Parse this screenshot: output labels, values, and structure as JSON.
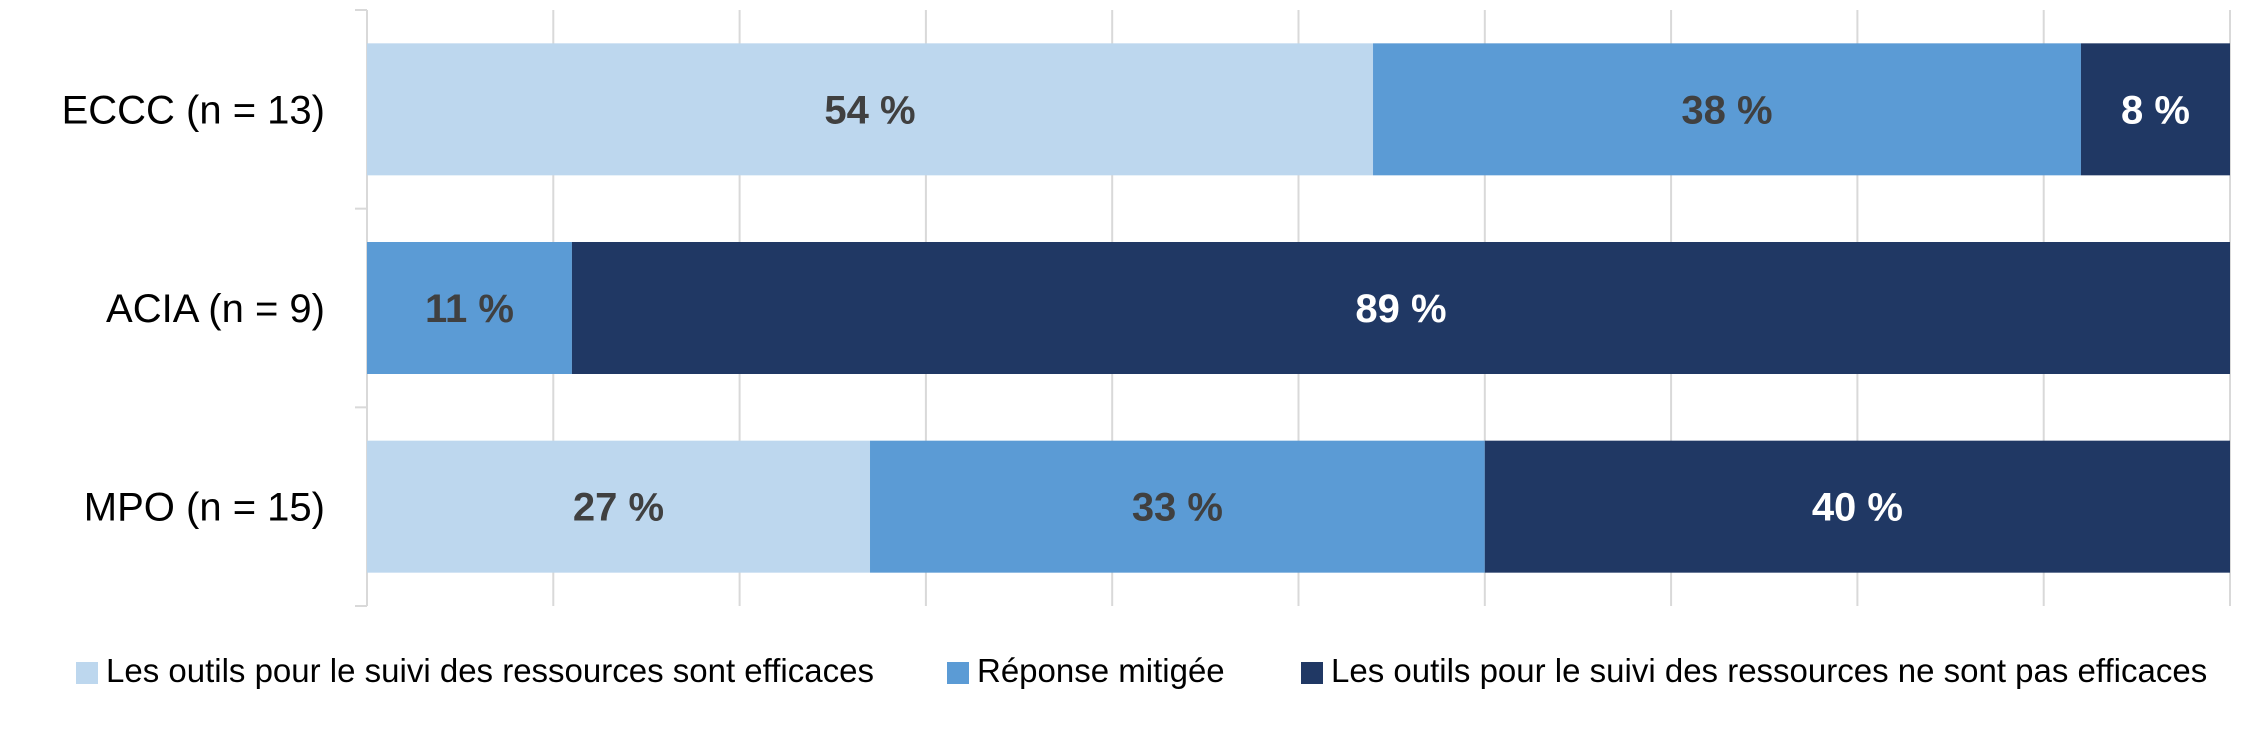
{
  "chart_data": {
    "type": "bar",
    "orientation": "horizontal",
    "stacked": true,
    "percent_stacked": true,
    "title": "",
    "xlabel": "",
    "ylabel": "",
    "xlim": [
      0,
      100
    ],
    "grid": true,
    "legend_position": "bottom",
    "categories": [
      "ECCC (n = 13)",
      "ACIA (n = 9)",
      "MPO (n = 15)"
    ],
    "series": [
      {
        "name": "Les outils pour le suivi des ressources sont efficaces",
        "color": "#BDD7EE",
        "values": [
          54,
          0,
          27
        ],
        "labels": [
          "54 %",
          "",
          "27 %"
        ],
        "label_color": "#404040"
      },
      {
        "name": "Réponse mitigée",
        "color": "#5B9BD5",
        "values": [
          38,
          11,
          33
        ],
        "labels": [
          "38 %",
          "11 %",
          "33 %"
        ],
        "label_color": "#404040"
      },
      {
        "name": "Les outils pour le suivi des ressources ne sont pas efficaces",
        "color": "#203864",
        "values": [
          8,
          89,
          40
        ],
        "labels": [
          "8 %",
          "89 %",
          "40 %"
        ],
        "label_color": "#FFFFFF"
      }
    ]
  }
}
